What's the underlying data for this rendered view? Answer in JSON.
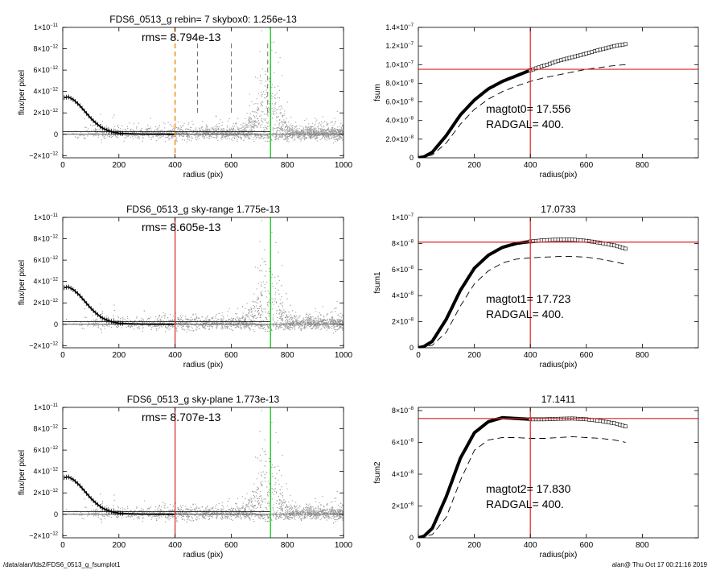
{
  "footer": {
    "left": "/data/alan/fds2/FDS6_0513_g_fsumplot1",
    "right": "alan@  Thu Oct 17 00:21:16 2019"
  },
  "colors": {
    "scatter": "#999999",
    "profile": "#000000",
    "sky_box": "#ee8800",
    "sky_line": "#dd2222",
    "radgal": "#22cc22",
    "crosshair": "#dd2222"
  },
  "chart_data": [
    {
      "type": "scatter",
      "title": "FDS6_0513_g rebin= 7    skybox0:  1.256e-13",
      "annotation": "rms= 8.794e-13",
      "xlabel": "radius (pix)",
      "ylabel": "flux/per pixel",
      "xlim": [
        0,
        1000
      ],
      "ylim": [
        -2.2e-12,
        1e-11
      ],
      "xticks": [
        "0",
        "200",
        "400",
        "600",
        "800",
        "1000"
      ],
      "yticks": [
        {
          "v": -2e-12,
          "m": "−2×10",
          "e": "−12"
        },
        {
          "v": 0,
          "m": "0",
          "e": ""
        },
        {
          "v": 2e-12,
          "m": "2×10",
          "e": "−12"
        },
        {
          "v": 4e-12,
          "m": "4×10",
          "e": "−12"
        },
        {
          "v": 6e-12,
          "m": "6×10",
          "e": "−12"
        },
        {
          "v": 8e-12,
          "m": "8×10",
          "e": "−12"
        },
        {
          "v": 1e-11,
          "m": "1×10",
          "e": "−11"
        }
      ],
      "sky_box_line": 400,
      "dashed_lines": [
        480,
        600,
        730
      ],
      "radgal_line": 740,
      "profile": [
        [
          0,
          3.4e-12
        ],
        [
          20,
          3.5e-12
        ],
        [
          40,
          3.2e-12
        ],
        [
          60,
          2.7e-12
        ],
        [
          80,
          2.1e-12
        ],
        [
          100,
          1.5e-12
        ],
        [
          120,
          1e-12
        ],
        [
          140,
          6e-13
        ],
        [
          160,
          3.5e-13
        ],
        [
          180,
          2e-13
        ],
        [
          200,
          1e-13
        ],
        [
          240,
          4e-14
        ],
        [
          300,
          1e-14
        ],
        [
          400,
          0
        ],
        [
          740,
          0
        ]
      ],
      "residual_band": {
        "low": 0,
        "high": 2.5e-13
      }
    },
    {
      "type": "line",
      "title": "",
      "xlabel": "radius(pix)",
      "ylabel": "fsum",
      "xlim": [
        0,
        1000
      ],
      "ylim": [
        0,
        1.4e-07
      ],
      "xticks": [
        "0",
        "200",
        "400",
        "600",
        "800"
      ],
      "yticks": [
        {
          "v": 0,
          "m": "0",
          "e": ""
        },
        {
          "v": 2e-08,
          "m": "2.0×10",
          "e": "−8"
        },
        {
          "v": 4e-08,
          "m": "4.0×10",
          "e": "−8"
        },
        {
          "v": 6e-08,
          "m": "6.0×10",
          "e": "−8"
        },
        {
          "v": 8e-08,
          "m": "8.0×10",
          "e": "−8"
        },
        {
          "v": 1e-07,
          "m": "1.0×10",
          "e": "−7"
        },
        {
          "v": 1.2e-07,
          "m": "1.2×10",
          "e": "−7"
        },
        {
          "v": 1.4e-07,
          "m": "1.4×10",
          "e": "−7"
        }
      ],
      "annotation_lines": [
        "magtot0=  17.556",
        "RADGAL=    400."
      ],
      "vline": 400,
      "hline": 9.5e-08,
      "series": [
        {
          "style": "solid",
          "points": [
            [
              0,
              0
            ],
            [
              20,
              1e-09
            ],
            [
              50,
              6e-09
            ],
            [
              100,
              2.4e-08
            ],
            [
              150,
              4.6e-08
            ],
            [
              200,
              6.2e-08
            ],
            [
              250,
              7.4e-08
            ],
            [
              300,
              8.2e-08
            ],
            [
              350,
              8.8e-08
            ],
            [
              400,
              9.4e-08
            ],
            [
              450,
              9.9e-08
            ],
            [
              500,
              1.04e-07
            ],
            [
              550,
              1.08e-07
            ],
            [
              600,
              1.12e-07
            ],
            [
              650,
              1.16e-07
            ],
            [
              700,
              1.2e-07
            ],
            [
              740,
              1.22e-07
            ]
          ]
        },
        {
          "style": "dashed",
          "points": [
            [
              0,
              0
            ],
            [
              50,
              3e-09
            ],
            [
              100,
              1.6e-08
            ],
            [
              150,
              3.6e-08
            ],
            [
              200,
              5.2e-08
            ],
            [
              250,
              6.3e-08
            ],
            [
              300,
              7.1e-08
            ],
            [
              350,
              7.7e-08
            ],
            [
              400,
              8.2e-08
            ],
            [
              450,
              8.6e-08
            ],
            [
              500,
              8.9e-08
            ],
            [
              550,
              9.2e-08
            ],
            [
              600,
              9.5e-08
            ],
            [
              650,
              9.7e-08
            ],
            [
              700,
              9.9e-08
            ],
            [
              740,
              1e-07
            ]
          ]
        }
      ]
    },
    {
      "type": "scatter",
      "title": "FDS6_0513_g sky-range  1.775e-13",
      "annotation": "rms= 8.605e-13",
      "xlabel": "radius (pix)",
      "ylabel": "flux/per pixel",
      "xlim": [
        0,
        1000
      ],
      "ylim": [
        -2.2e-12,
        1e-11
      ],
      "xticks": [
        "0",
        "200",
        "400",
        "600",
        "800",
        "1000"
      ],
      "yticks": [
        {
          "v": -2e-12,
          "m": "−2×10",
          "e": "−12"
        },
        {
          "v": 0,
          "m": "0",
          "e": ""
        },
        {
          "v": 2e-12,
          "m": "2×10",
          "e": "−12"
        },
        {
          "v": 4e-12,
          "m": "4×10",
          "e": "−12"
        },
        {
          "v": 6e-12,
          "m": "6×10",
          "e": "−12"
        },
        {
          "v": 8e-12,
          "m": "8×10",
          "e": "−12"
        },
        {
          "v": 1e-11,
          "m": "1×10",
          "e": "−11"
        }
      ],
      "sky_line": 400,
      "radgal_line": 740,
      "profile": [
        [
          0,
          3.4e-12
        ],
        [
          20,
          3.5e-12
        ],
        [
          40,
          3.2e-12
        ],
        [
          60,
          2.7e-12
        ],
        [
          80,
          2.1e-12
        ],
        [
          100,
          1.5e-12
        ],
        [
          120,
          1e-12
        ],
        [
          140,
          6e-13
        ],
        [
          160,
          3.5e-13
        ],
        [
          180,
          2e-13
        ],
        [
          200,
          1e-13
        ],
        [
          240,
          4e-14
        ],
        [
          300,
          1e-14
        ],
        [
          400,
          0
        ],
        [
          740,
          0
        ]
      ],
      "residual_band": {
        "low": 0,
        "high": 2.5e-13
      }
    },
    {
      "type": "line",
      "title": "17.0733",
      "xlabel": "radius(pix)",
      "ylabel": "fsum1",
      "xlim": [
        0,
        1000
      ],
      "ylim": [
        0,
        1e-07
      ],
      "xticks": [
        "0",
        "200",
        "400",
        "600",
        "800"
      ],
      "yticks": [
        {
          "v": 0,
          "m": "0",
          "e": ""
        },
        {
          "v": 2e-08,
          "m": "2×10",
          "e": "−8"
        },
        {
          "v": 4e-08,
          "m": "4×10",
          "e": "−8"
        },
        {
          "v": 6e-08,
          "m": "6×10",
          "e": "−8"
        },
        {
          "v": 8e-08,
          "m": "8×10",
          "e": "−8"
        },
        {
          "v": 1e-07,
          "m": "1×10",
          "e": "−7"
        }
      ],
      "annotation_lines": [
        "magtot1=  17.723",
        "RADGAL=    400."
      ],
      "vline": 400,
      "hline": 8.1e-08,
      "series": [
        {
          "style": "solid",
          "points": [
            [
              0,
              0
            ],
            [
              20,
              1e-09
            ],
            [
              50,
              5e-09
            ],
            [
              100,
              2.2e-08
            ],
            [
              150,
              4.4e-08
            ],
            [
              200,
              6.1e-08
            ],
            [
              250,
              7.1e-08
            ],
            [
              300,
              7.7e-08
            ],
            [
              350,
              8e-08
            ],
            [
              400,
              8.15e-08
            ],
            [
              450,
              8.25e-08
            ],
            [
              500,
              8.3e-08
            ],
            [
              550,
              8.3e-08
            ],
            [
              600,
              8.2e-08
            ],
            [
              650,
              8.05e-08
            ],
            [
              700,
              7.85e-08
            ],
            [
              740,
              7.6e-08
            ]
          ]
        },
        {
          "style": "dashed",
          "points": [
            [
              0,
              0
            ],
            [
              50,
              2e-09
            ],
            [
              100,
              1.2e-08
            ],
            [
              150,
              3.2e-08
            ],
            [
              200,
              4.9e-08
            ],
            [
              250,
              5.9e-08
            ],
            [
              300,
              6.5e-08
            ],
            [
              350,
              6.8e-08
            ],
            [
              400,
              6.9e-08
            ],
            [
              450,
              6.95e-08
            ],
            [
              500,
              7e-08
            ],
            [
              550,
              7e-08
            ],
            [
              600,
              6.95e-08
            ],
            [
              650,
              6.8e-08
            ],
            [
              700,
              6.6e-08
            ],
            [
              740,
              6.4e-08
            ]
          ]
        }
      ]
    },
    {
      "type": "scatter",
      "title": "FDS6_0513_g sky-plane  1.773e-13",
      "annotation": "rms= 8.707e-13",
      "xlabel": "radius (pix)",
      "ylabel": "flux/per pixel",
      "xlim": [
        0,
        1000
      ],
      "ylim": [
        -2.2e-12,
        1e-11
      ],
      "xticks": [
        "0",
        "200",
        "400",
        "600",
        "800",
        "1000"
      ],
      "yticks": [
        {
          "v": -2e-12,
          "m": "−2×10",
          "e": "−12"
        },
        {
          "v": 0,
          "m": "0",
          "e": ""
        },
        {
          "v": 2e-12,
          "m": "2×10",
          "e": "−12"
        },
        {
          "v": 4e-12,
          "m": "4×10",
          "e": "−12"
        },
        {
          "v": 6e-12,
          "m": "6×10",
          "e": "−12"
        },
        {
          "v": 8e-12,
          "m": "8×10",
          "e": "−12"
        },
        {
          "v": 1e-11,
          "m": "1×10",
          "e": "−11"
        }
      ],
      "sky_line": 400,
      "radgal_line": 740,
      "profile": [
        [
          0,
          3.4e-12
        ],
        [
          20,
          3.5e-12
        ],
        [
          40,
          3.2e-12
        ],
        [
          60,
          2.7e-12
        ],
        [
          80,
          2.1e-12
        ],
        [
          100,
          1.5e-12
        ],
        [
          120,
          1e-12
        ],
        [
          140,
          6e-13
        ],
        [
          160,
          3.5e-13
        ],
        [
          180,
          2e-13
        ],
        [
          200,
          1e-13
        ],
        [
          240,
          4e-14
        ],
        [
          300,
          1e-14
        ],
        [
          400,
          0
        ],
        [
          740,
          0
        ]
      ],
      "residual_band": {
        "low": 0,
        "high": 2.5e-13
      }
    },
    {
      "type": "line",
      "title": "17.1411",
      "xlabel": "radius(pix)",
      "ylabel": "fsum2",
      "xlim": [
        0,
        1000
      ],
      "ylim": [
        0,
        8.2e-08
      ],
      "xticks": [
        "0",
        "200",
        "400",
        "600",
        "800"
      ],
      "yticks": [
        {
          "v": 0,
          "m": "0",
          "e": ""
        },
        {
          "v": 2e-08,
          "m": "2×10",
          "e": "−8"
        },
        {
          "v": 4e-08,
          "m": "4×10",
          "e": "−8"
        },
        {
          "v": 6e-08,
          "m": "6×10",
          "e": "−8"
        },
        {
          "v": 8e-08,
          "m": "8×10",
          "e": "−8"
        }
      ],
      "annotation_lines": [
        "magtot2=  17.830",
        "RADGAL=    400."
      ],
      "vline": 400,
      "hline": 7.5e-08,
      "series": [
        {
          "style": "solid",
          "points": [
            [
              0,
              0
            ],
            [
              20,
              1e-09
            ],
            [
              50,
              6e-09
            ],
            [
              100,
              2.6e-08
            ],
            [
              150,
              5e-08
            ],
            [
              200,
              6.6e-08
            ],
            [
              250,
              7.3e-08
            ],
            [
              300,
              7.55e-08
            ],
            [
              350,
              7.5e-08
            ],
            [
              400,
              7.45e-08
            ],
            [
              450,
              7.45e-08
            ],
            [
              500,
              7.48e-08
            ],
            [
              550,
              7.5e-08
            ],
            [
              600,
              7.45e-08
            ],
            [
              650,
              7.35e-08
            ],
            [
              700,
              7.2e-08
            ],
            [
              740,
              7e-08
            ]
          ]
        },
        {
          "style": "dashed",
          "points": [
            [
              0,
              0
            ],
            [
              50,
              2e-09
            ],
            [
              100,
              1.3e-08
            ],
            [
              150,
              3.6e-08
            ],
            [
              200,
              5.5e-08
            ],
            [
              250,
              6.15e-08
            ],
            [
              300,
              6.3e-08
            ],
            [
              350,
              6.3e-08
            ],
            [
              400,
              6.25e-08
            ],
            [
              450,
              6.25e-08
            ],
            [
              500,
              6.3e-08
            ],
            [
              550,
              6.35e-08
            ],
            [
              600,
              6.3e-08
            ],
            [
              650,
              6.25e-08
            ],
            [
              700,
              6.15e-08
            ],
            [
              740,
              6e-08
            ]
          ]
        }
      ]
    }
  ]
}
